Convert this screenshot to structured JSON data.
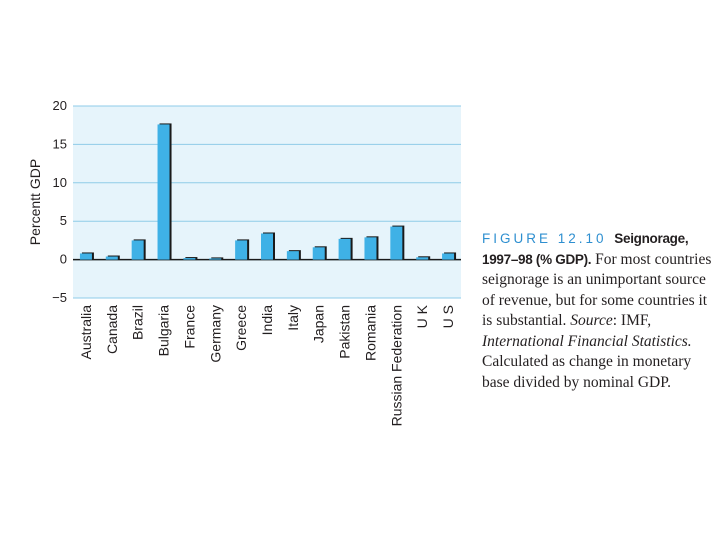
{
  "chart_data": {
    "type": "bar",
    "ylabel": "Percentt GDP",
    "ylim": [
      -5,
      20
    ],
    "yticks": [
      20,
      15,
      10,
      5,
      0,
      -5
    ],
    "ytick_labels": [
      "20",
      "15",
      "10",
      "5",
      "0",
      "−5"
    ],
    "categories": [
      "Australia",
      "Canada",
      "Brazil",
      "Bulgaria",
      "France",
      "Germany",
      "Greece",
      "India",
      "Italy",
      "Japan",
      "Pakistan",
      "Romania",
      "Russian Federation",
      "U K",
      "U S"
    ],
    "values": [
      0.8,
      0.4,
      2.5,
      17.6,
      0.2,
      0.1,
      2.5,
      3.4,
      1.1,
      1.6,
      2.7,
      2.9,
      4.3,
      0.3,
      0.8
    ],
    "grid": true,
    "colors": {
      "bar": "#3fb1e6",
      "shadow": "#1a1a1a",
      "plot_bg": "#e6f4fb",
      "grid": "#8fcbe8"
    }
  },
  "caption": {
    "figure_number": "FIGURE 12.10",
    "figure_title": "Seignorage, 1997–98 (% GDP).",
    "text_1": "For most countries seignorage is an unimportant source of revenue, but for some countries it is substantial.",
    "source_label": "Source",
    "text_2": ": IMF,",
    "source_title": "International Financial Statistics.",
    "text_3": "Calculated as change in monetary base divided by nominal GDP."
  }
}
